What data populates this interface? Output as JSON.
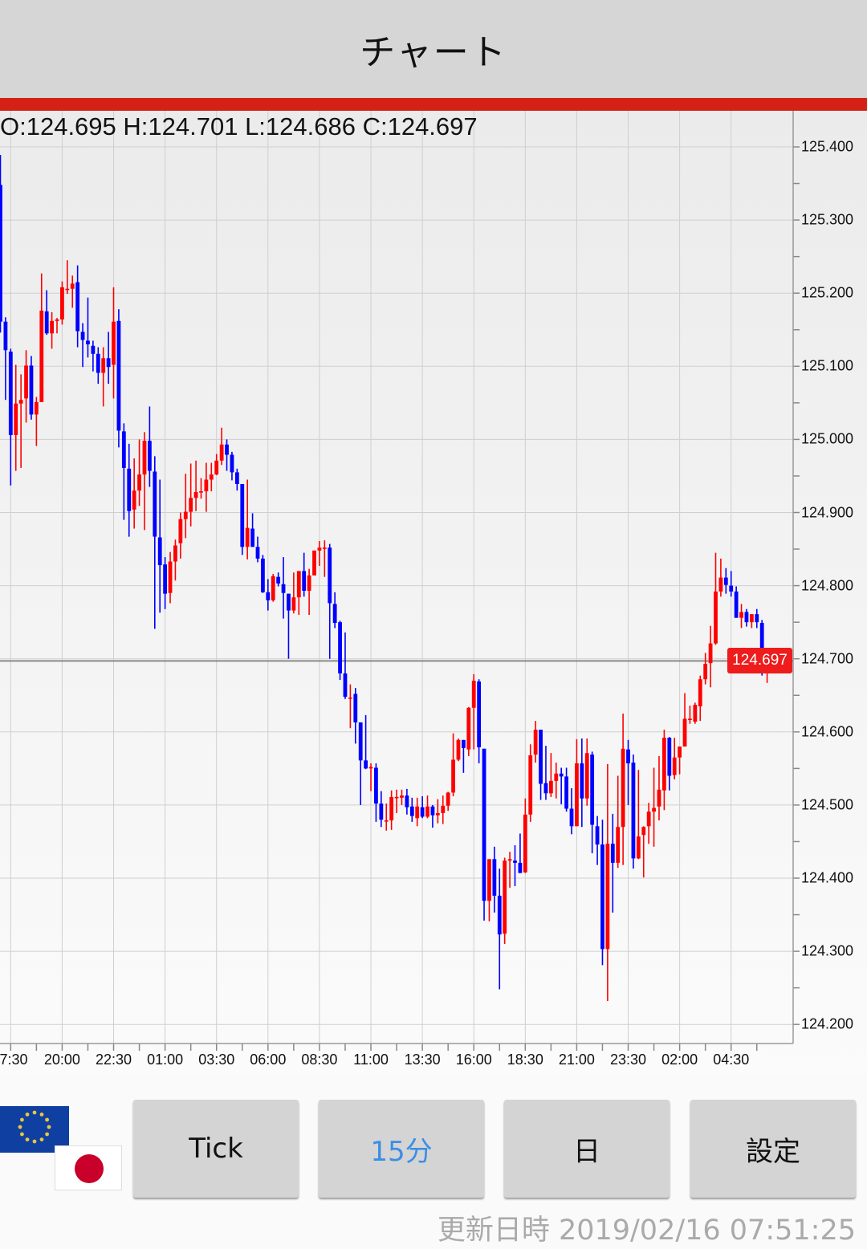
{
  "header": {
    "title": "チャート"
  },
  "ohlc_text": "O:124.695 H:124.701 L:124.686 C:124.697",
  "current_price_label": "124.697",
  "buttons": [
    {
      "label": "Tick",
      "active": false
    },
    {
      "label": "15分",
      "active": true
    },
    {
      "label": "日",
      "active": false
    },
    {
      "label": "設定",
      "active": false
    }
  ],
  "currency_pair": {
    "base_flag": "eu-flag-icon",
    "quote_flag": "japan-flag-icon"
  },
  "footer": {
    "updated": "更新日時 2019/02/16 07:51:25"
  },
  "colors": {
    "accent": "#d42116",
    "up": "#ff0000",
    "down": "#0000ff",
    "price_label": "#ee1c1c",
    "active_button_text": "#3a8ee6"
  },
  "chart_data": {
    "type": "candlestick",
    "title": "",
    "ylim": [
      124.2,
      125.4
    ],
    "y_ticks": [
      "125.400",
      "125.300",
      "125.200",
      "125.100",
      "125.000",
      "124.900",
      "124.800",
      "124.700",
      "124.600",
      "124.500",
      "124.400",
      "124.300",
      "124.200"
    ],
    "x_tick_labels": [
      "7:30",
      "20:00",
      "22:30",
      "01:00",
      "03:30",
      "06:00",
      "08:30",
      "11:00",
      "13:30",
      "16:00",
      "18:30",
      "21:00",
      "23:30",
      "02:00",
      "04:30"
    ],
    "current_price": 124.697,
    "grid": true,
    "candles_ohlc": [
      [
        125.348,
        125.389,
        125.146,
        125.161
      ],
      [
        125.161,
        125.167,
        125.054,
        125.122
      ],
      [
        125.12,
        125.124,
        124.937,
        125.006
      ],
      [
        125.006,
        125.102,
        124.957,
        125.049
      ],
      [
        125.049,
        125.089,
        124.961,
        125.054
      ],
      [
        125.056,
        125.122,
        125.023,
        125.101
      ],
      [
        125.101,
        125.114,
        125.027,
        125.034
      ],
      [
        125.034,
        125.058,
        124.991,
        125.051
      ],
      [
        125.051,
        125.227,
        125.051,
        125.176
      ],
      [
        125.175,
        125.204,
        125.143,
        125.145
      ],
      [
        125.145,
        125.174,
        125.124,
        125.162
      ],
      [
        125.162,
        125.166,
        125.145,
        125.164
      ],
      [
        125.164,
        125.216,
        125.157,
        125.208
      ],
      [
        125.206,
        125.245,
        125.199,
        125.206
      ],
      [
        125.206,
        125.224,
        125.18,
        125.213
      ],
      [
        125.215,
        125.238,
        125.126,
        125.148
      ],
      [
        125.147,
        125.159,
        125.099,
        125.136
      ],
      [
        125.135,
        125.194,
        125.112,
        125.13
      ],
      [
        125.128,
        125.135,
        125.093,
        125.117
      ],
      [
        125.117,
        125.126,
        125.076,
        125.091
      ],
      [
        125.091,
        125.126,
        125.045,
        125.111
      ],
      [
        125.111,
        125.147,
        125.076,
        125.099
      ],
      [
        125.102,
        125.208,
        125.056,
        125.161
      ],
      [
        125.162,
        125.178,
        124.989,
        125.012
      ],
      [
        125.011,
        125.022,
        124.89,
        124.961
      ],
      [
        124.96,
        124.994,
        124.867,
        124.902
      ],
      [
        124.904,
        124.974,
        124.878,
        124.93
      ],
      [
        124.93,
        125.0,
        124.909,
        124.952
      ],
      [
        124.952,
        125.01,
        124.876,
        124.998
      ],
      [
        124.998,
        125.045,
        124.935,
        124.957
      ],
      [
        124.956,
        124.977,
        124.741,
        124.867
      ],
      [
        124.866,
        124.945,
        124.763,
        124.828
      ],
      [
        124.829,
        124.839,
        124.768,
        124.789
      ],
      [
        124.79,
        124.846,
        124.776,
        124.833
      ],
      [
        124.833,
        124.863,
        124.807,
        124.855
      ],
      [
        124.858,
        124.9,
        124.837,
        124.891
      ],
      [
        124.891,
        124.953,
        124.865,
        124.901
      ],
      [
        124.901,
        124.967,
        124.881,
        124.92
      ],
      [
        124.92,
        124.971,
        124.902,
        124.928
      ],
      [
        124.929,
        124.947,
        124.919,
        124.929
      ],
      [
        124.929,
        124.968,
        124.901,
        124.945
      ],
      [
        124.945,
        124.968,
        124.929,
        124.952
      ],
      [
        124.952,
        124.98,
        124.951,
        124.971
      ],
      [
        124.971,
        125.016,
        124.965,
        124.993
      ],
      [
        124.993,
        125.0,
        124.957,
        124.979
      ],
      [
        124.979,
        124.983,
        124.944,
        124.955
      ],
      [
        124.955,
        124.96,
        124.93,
        124.939
      ],
      [
        124.939,
        124.939,
        124.842,
        124.853
      ],
      [
        124.853,
        124.945,
        124.836,
        124.879
      ],
      [
        124.878,
        124.899,
        124.853,
        124.853
      ],
      [
        124.853,
        124.867,
        124.832,
        124.837
      ],
      [
        124.837,
        124.842,
        124.79,
        124.791
      ],
      [
        124.791,
        124.809,
        124.766,
        124.78
      ],
      [
        124.78,
        124.816,
        124.778,
        124.813
      ],
      [
        124.812,
        124.818,
        124.799,
        124.803
      ],
      [
        124.802,
        124.839,
        124.755,
        124.79
      ],
      [
        124.789,
        124.789,
        124.7,
        124.766
      ],
      [
        124.766,
        124.818,
        124.762,
        124.784
      ],
      [
        124.784,
        124.82,
        124.76,
        124.82
      ],
      [
        124.82,
        124.845,
        124.785,
        124.793
      ],
      [
        124.793,
        124.823,
        124.76,
        124.814
      ],
      [
        124.814,
        124.848,
        124.814,
        124.848
      ],
      [
        124.848,
        124.861,
        124.827,
        124.852
      ],
      [
        124.852,
        124.862,
        124.812,
        124.852
      ],
      [
        124.852,
        124.857,
        124.7,
        124.776
      ],
      [
        124.775,
        124.791,
        124.742,
        124.749
      ],
      [
        124.75,
        124.752,
        124.671,
        124.68
      ],
      [
        124.68,
        124.736,
        124.645,
        124.648
      ],
      [
        124.647,
        124.665,
        124.605,
        124.647
      ],
      [
        124.652,
        124.66,
        124.584,
        124.613
      ],
      [
        124.613,
        124.613,
        124.5,
        124.561
      ],
      [
        124.561,
        124.623,
        124.549,
        124.55
      ],
      [
        124.55,
        124.557,
        124.519,
        124.552
      ],
      [
        124.551,
        124.557,
        124.477,
        124.502
      ],
      [
        124.502,
        124.519,
        124.47,
        124.48
      ],
      [
        124.479,
        124.502,
        124.465,
        124.479
      ],
      [
        124.479,
        124.52,
        124.466,
        124.511
      ],
      [
        124.511,
        124.521,
        124.489,
        124.511
      ],
      [
        124.51,
        124.521,
        124.5,
        124.513
      ],
      [
        124.513,
        124.522,
        124.487,
        124.497
      ],
      [
        124.498,
        124.51,
        124.477,
        124.485
      ],
      [
        124.482,
        124.51,
        124.471,
        124.498
      ],
      [
        124.497,
        124.512,
        124.482,
        124.484
      ],
      [
        124.484,
        124.513,
        124.482,
        124.498
      ],
      [
        124.498,
        124.5,
        124.469,
        124.486
      ],
      [
        124.486,
        124.508,
        124.475,
        124.489
      ],
      [
        124.489,
        124.513,
        124.474,
        124.499
      ],
      [
        124.499,
        124.518,
        124.492,
        124.517
      ],
      [
        124.517,
        124.598,
        124.512,
        124.562
      ],
      [
        124.562,
        124.591,
        124.56,
        124.589
      ],
      [
        124.589,
        124.589,
        124.544,
        124.578
      ],
      [
        124.576,
        124.634,
        124.567,
        124.633
      ],
      [
        124.633,
        124.679,
        124.576,
        124.67
      ],
      [
        124.669,
        124.672,
        124.557,
        124.579
      ],
      [
        124.577,
        124.577,
        124.342,
        124.369
      ],
      [
        124.369,
        124.426,
        124.341,
        124.426
      ],
      [
        124.426,
        124.443,
        124.353,
        124.376
      ],
      [
        124.376,
        124.413,
        124.248,
        124.323
      ],
      [
        124.324,
        124.428,
        124.31,
        124.424
      ],
      [
        124.424,
        124.436,
        124.387,
        124.426
      ],
      [
        124.424,
        124.445,
        124.389,
        124.421
      ],
      [
        124.421,
        124.461,
        124.407,
        124.407
      ],
      [
        124.408,
        124.509,
        124.407,
        124.487
      ],
      [
        124.487,
        124.583,
        124.477,
        124.568
      ],
      [
        124.569,
        124.615,
        124.558,
        124.603
      ],
      [
        124.603,
        124.603,
        124.507,
        124.529
      ],
      [
        124.53,
        124.581,
        124.507,
        124.516
      ],
      [
        124.516,
        124.571,
        124.511,
        124.533
      ],
      [
        124.533,
        124.558,
        124.509,
        124.543
      ],
      [
        124.543,
        124.551,
        124.501,
        124.539
      ],
      [
        124.539,
        124.551,
        124.491,
        124.495
      ],
      [
        124.495,
        124.523,
        124.46,
        124.471
      ],
      [
        124.471,
        124.59,
        124.471,
        124.557
      ],
      [
        124.557,
        124.591,
        124.47,
        124.509
      ],
      [
        124.509,
        124.591,
        124.499,
        124.571
      ],
      [
        124.569,
        124.573,
        124.434,
        124.473
      ],
      [
        124.471,
        124.485,
        124.418,
        124.446
      ],
      [
        124.446,
        124.48,
        124.281,
        124.303
      ],
      [
        124.303,
        124.556,
        124.232,
        124.447
      ],
      [
        124.447,
        124.488,
        124.353,
        124.421
      ],
      [
        124.421,
        124.54,
        124.414,
        124.47
      ],
      [
        124.47,
        124.625,
        124.418,
        124.577
      ],
      [
        124.576,
        124.589,
        124.5,
        124.557
      ],
      [
        124.558,
        124.569,
        124.413,
        124.427
      ],
      [
        124.427,
        124.548,
        124.426,
        124.457
      ],
      [
        124.459,
        124.471,
        124.401,
        124.47
      ],
      [
        124.471,
        124.503,
        124.447,
        124.491
      ],
      [
        124.491,
        124.551,
        124.443,
        124.496
      ],
      [
        124.498,
        124.567,
        124.479,
        124.521
      ],
      [
        124.52,
        124.603,
        124.493,
        124.592
      ],
      [
        124.592,
        124.593,
        124.52,
        124.54
      ],
      [
        124.541,
        124.592,
        124.535,
        124.565
      ],
      [
        124.565,
        124.58,
        124.542,
        124.58
      ],
      [
        124.58,
        124.653,
        124.58,
        124.618
      ],
      [
        124.618,
        124.636,
        124.611,
        124.618
      ],
      [
        124.614,
        124.64,
        124.611,
        124.637
      ],
      [
        124.635,
        124.677,
        124.615,
        124.672
      ],
      [
        124.672,
        124.708,
        124.665,
        124.693
      ],
      [
        124.694,
        124.745,
        124.661,
        124.721
      ],
      [
        124.721,
        124.845,
        124.719,
        124.792
      ],
      [
        124.792,
        124.837,
        124.785,
        124.811
      ],
      [
        124.811,
        124.824,
        124.789,
        124.801
      ],
      [
        124.8,
        124.82,
        124.785,
        124.792
      ],
      [
        124.792,
        124.799,
        124.756,
        124.756
      ],
      [
        124.756,
        124.775,
        124.742,
        124.764
      ],
      [
        124.764,
        124.768,
        124.744,
        124.75
      ],
      [
        124.75,
        124.761,
        124.742,
        124.761
      ],
      [
        124.761,
        124.768,
        124.742,
        124.75
      ],
      [
        124.749,
        124.753,
        124.677,
        124.682
      ],
      [
        124.684,
        124.686,
        124.667,
        124.684
      ],
      [
        124.685,
        124.713,
        124.683,
        124.695
      ],
      [
        124.695,
        124.701,
        124.686,
        124.697
      ]
    ]
  }
}
